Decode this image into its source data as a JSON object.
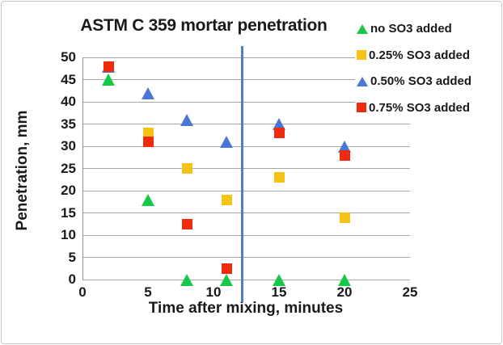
{
  "chart_data": {
    "type": "scatter",
    "title": "ASTM C 359 mortar penetration",
    "xlabel": "Time after mixing, minutes",
    "ylabel": "Penetration, mm",
    "xlim": [
      0,
      25
    ],
    "ylim": [
      0,
      50
    ],
    "xticks": [
      0,
      5,
      10,
      15,
      20,
      25
    ],
    "yticks": [
      0,
      5,
      10,
      15,
      20,
      25,
      30,
      35,
      40,
      45,
      50
    ],
    "grid": "horizontal-only",
    "legend_position": "top-right",
    "reference_line": {
      "x": 12.2,
      "color": "#4f81bd"
    },
    "series": [
      {
        "name": "no SO3 added",
        "marker": "triangle",
        "color": "#15c947",
        "points": [
          [
            2,
            45
          ],
          [
            5,
            18
          ],
          [
            8,
            0
          ],
          [
            11,
            0
          ],
          [
            15,
            0
          ],
          [
            20,
            0
          ]
        ]
      },
      {
        "name": "0.25% SO3 added",
        "marker": "square",
        "color": "#f6c213",
        "points": [
          [
            5,
            33
          ],
          [
            8,
            25
          ],
          [
            11,
            18
          ],
          [
            15,
            23
          ],
          [
            20,
            14
          ]
        ]
      },
      {
        "name": "0.50% SO3 added",
        "marker": "triangle",
        "color": "#4a77d6",
        "points": [
          [
            2,
            48
          ],
          [
            5,
            42
          ],
          [
            8,
            36
          ],
          [
            11,
            31
          ],
          [
            15,
            35
          ],
          [
            20,
            30
          ]
        ]
      },
      {
        "name": "0.75% SO3 added",
        "marker": "square",
        "color": "#f02a0c",
        "points": [
          [
            2,
            48
          ],
          [
            5,
            31
          ],
          [
            8,
            12.5
          ],
          [
            11,
            2.5
          ],
          [
            15,
            33
          ],
          [
            20,
            28
          ]
        ]
      }
    ]
  },
  "colors": {
    "gridline": "#a6a6a6",
    "axis_line": "#8f8f8f",
    "figure_border": "#c9c9c9",
    "text": "#1a1a1a"
  }
}
